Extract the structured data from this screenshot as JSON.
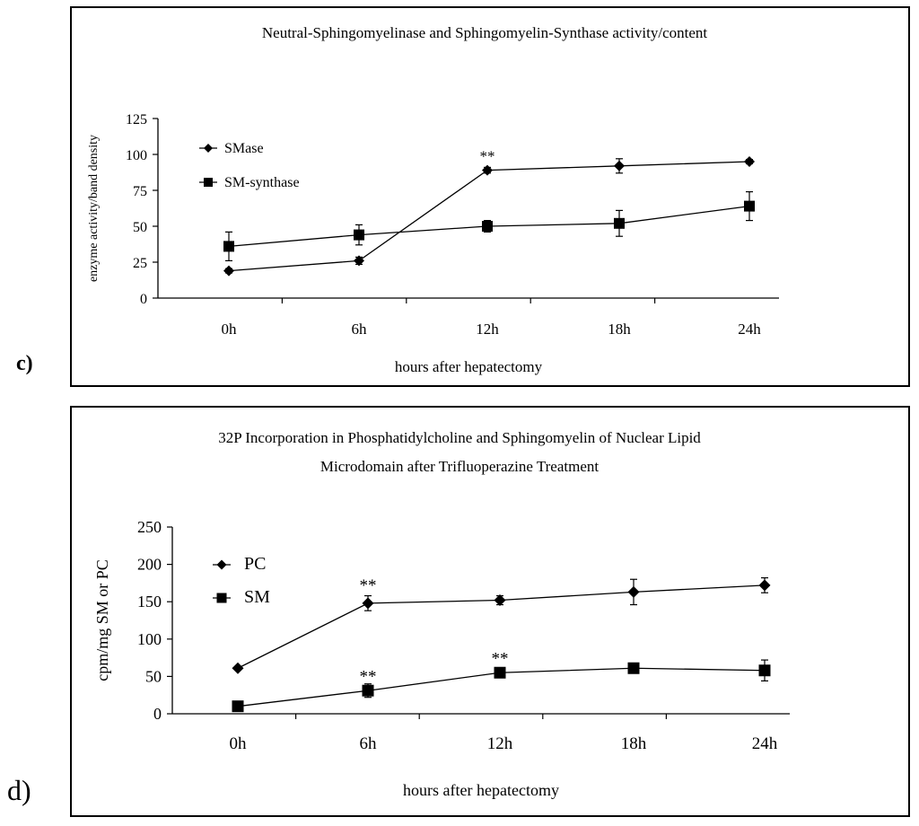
{
  "labels": {
    "c": "c)",
    "d": "d)"
  },
  "chart_data": [
    {
      "type": "line",
      "title": "Neutral-Sphingomyelinase and Sphingomyelin-Synthase activity/content",
      "xlabel": "hours after hepatectomy",
      "ylabel": "enzyme activity/band density",
      "categories": [
        "0h",
        "6h",
        "12h",
        "18h",
        "24h"
      ],
      "ylim": [
        0,
        125
      ],
      "yticks": [
        "0",
        "25",
        "50",
        "75",
        "100",
        "125"
      ],
      "legend_position": "top-left",
      "grid": false,
      "series": [
        {
          "name": "SMase",
          "marker": "diamond",
          "values": [
            19,
            26,
            89,
            92,
            95
          ],
          "errors": [
            1.5,
            2.5,
            2,
            5,
            1.5
          ]
        },
        {
          "name": "SM-synthase",
          "marker": "square",
          "values": [
            36,
            44,
            50,
            52,
            64
          ],
          "errors": [
            10,
            7,
            4,
            9,
            10
          ]
        }
      ],
      "annotations": [
        {
          "text": "**",
          "category": "12h",
          "y": 99
        }
      ]
    },
    {
      "type": "line",
      "title": "32P Incorporation in Phosphatidylcholine and Sphingomyelin of Nuclear Lipid Microdomain after Trifluoperazine Treatment",
      "title_lines": [
        "32P Incorporation in Phosphatidylcholine and Sphingomyelin of Nuclear Lipid",
        "Microdomain after Trifluoperazine Treatment"
      ],
      "xlabel": "hours after hepatectomy",
      "ylabel": "cpm/mg SM or PC",
      "categories": [
        "0h",
        "6h",
        "12h",
        "18h",
        "24h"
      ],
      "ylim": [
        0,
        250
      ],
      "yticks": [
        "0",
        "50",
        "100",
        "150",
        "200",
        "250"
      ],
      "legend_position": "top-left",
      "grid": false,
      "series": [
        {
          "name": "PC",
          "marker": "diamond",
          "values": [
            61,
            148,
            152,
            163,
            172
          ],
          "errors": [
            2,
            10,
            6,
            17,
            10
          ]
        },
        {
          "name": "SM",
          "marker": "square",
          "values": [
            10,
            31,
            55,
            61,
            58
          ],
          "errors": [
            3,
            9,
            5,
            3,
            14
          ]
        }
      ],
      "annotations": [
        {
          "text": "**",
          "category": "6h",
          "y": 172
        },
        {
          "text": "**",
          "category": "6h",
          "y": 50
        },
        {
          "text": "**",
          "category": "12h",
          "y": 74
        }
      ]
    }
  ]
}
